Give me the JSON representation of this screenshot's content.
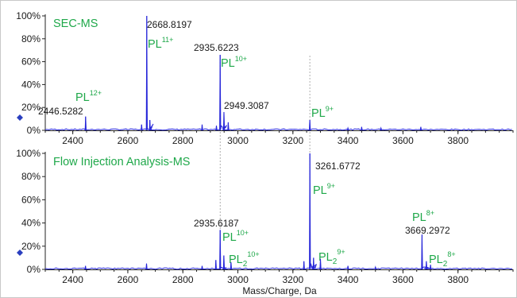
{
  "colors": {
    "spectrum": "#2626d9",
    "ion_label": "#1fa84a",
    "title": "#1fa84a",
    "marker": "#2a3fbf",
    "axis": "#222222",
    "dashed": "#9a9a9a"
  },
  "chart_data": [
    {
      "type": "line",
      "title": "SEC-MS",
      "xlabel": "",
      "ylabel": "",
      "xlim": [
        2300,
        4000
      ],
      "ylim": [
        0,
        100
      ],
      "x_ticks": [
        2400,
        2600,
        2800,
        3000,
        3200,
        3400,
        3600,
        3800
      ],
      "x_tick_labels": [
        "2400",
        "2600",
        "2800",
        "3000",
        "3200",
        "3400",
        "3600",
        "3800"
      ],
      "y_ticks": [
        0,
        20,
        40,
        60,
        80,
        100
      ],
      "y_tick_labels": [
        "0%",
        "20%",
        "40%",
        "60%",
        "80%",
        "100%"
      ],
      "series": [
        {
          "peaks": [
            {
              "x": 2446.5282,
              "y": 12
            },
            {
              "x": 2650,
              "y": 5
            },
            {
              "x": 2668.8197,
              "y": 100
            },
            {
              "x": 2680,
              "y": 9
            },
            {
              "x": 2870,
              "y": 5
            },
            {
              "x": 2922,
              "y": 4
            },
            {
              "x": 2935.6223,
              "y": 66
            },
            {
              "x": 2949.3087,
              "y": 16
            },
            {
              "x": 2965,
              "y": 7
            },
            {
              "x": 3261.5,
              "y": 9
            },
            {
              "x": 3400,
              "y": 2
            },
            {
              "x": 3450,
              "y": 3
            },
            {
              "x": 3520,
              "y": 2
            },
            {
              "x": 3665,
              "y": 3
            }
          ]
        }
      ],
      "peak_labels": [
        "2446.5282",
        "2668.8197",
        "2935.6223",
        "2949.3087"
      ],
      "ion_labels": [
        {
          "base": "PL",
          "sub": "",
          "sup": "12+"
        },
        {
          "base": "PL",
          "sub": "",
          "sup": "11+"
        },
        {
          "base": "PL",
          "sub": "",
          "sup": "10+"
        },
        {
          "base": "PL",
          "sub": "",
          "sup": "9+"
        }
      ]
    },
    {
      "type": "line",
      "title": "Flow Injection Analysis-MS",
      "xlabel": "Mass/Charge, Da",
      "ylabel": "",
      "xlim": [
        2300,
        4000
      ],
      "ylim": [
        0,
        100
      ],
      "x_ticks": [
        2400,
        2600,
        2800,
        3000,
        3200,
        3400,
        3600,
        3800
      ],
      "x_tick_labels": [
        "2400",
        "2600",
        "2800",
        "3000",
        "3200",
        "3400",
        "3600",
        "3800"
      ],
      "y_ticks": [
        0,
        20,
        40,
        60,
        80,
        100
      ],
      "y_tick_labels": [
        "0%",
        "20%",
        "40%",
        "60%",
        "80%",
        "100%"
      ],
      "series": [
        {
          "peaks": [
            {
              "x": 2446,
              "y": 3
            },
            {
              "x": 2668,
              "y": 5
            },
            {
              "x": 2870,
              "y": 3
            },
            {
              "x": 2920,
              "y": 8
            },
            {
              "x": 2935.6187,
              "y": 34
            },
            {
              "x": 2949,
              "y": 12
            },
            {
              "x": 2975,
              "y": 6
            },
            {
              "x": 3240,
              "y": 7
            },
            {
              "x": 3261.6772,
              "y": 100
            },
            {
              "x": 3275,
              "y": 10
            },
            {
              "x": 3300,
              "y": 9
            },
            {
              "x": 3400,
              "y": 3
            },
            {
              "x": 3500,
              "y": 2
            },
            {
              "x": 3669.2972,
              "y": 30
            },
            {
              "x": 3685,
              "y": 7
            },
            {
              "x": 3700,
              "y": 4
            }
          ]
        }
      ],
      "peak_labels": [
        "2935.6187",
        "3261.6772",
        "3669.2972"
      ],
      "ion_labels": [
        {
          "base": "PL",
          "sub": "",
          "sup": "10+"
        },
        {
          "base": "PL",
          "sub": "2",
          "sup": "10+"
        },
        {
          "base": "PL",
          "sub": "",
          "sup": "9+"
        },
        {
          "base": "PL",
          "sub": "2",
          "sup": "9+"
        },
        {
          "base": "PL",
          "sub": "",
          "sup": "8+"
        },
        {
          "base": "PL",
          "sub": "2",
          "sup": "8+"
        }
      ]
    }
  ]
}
